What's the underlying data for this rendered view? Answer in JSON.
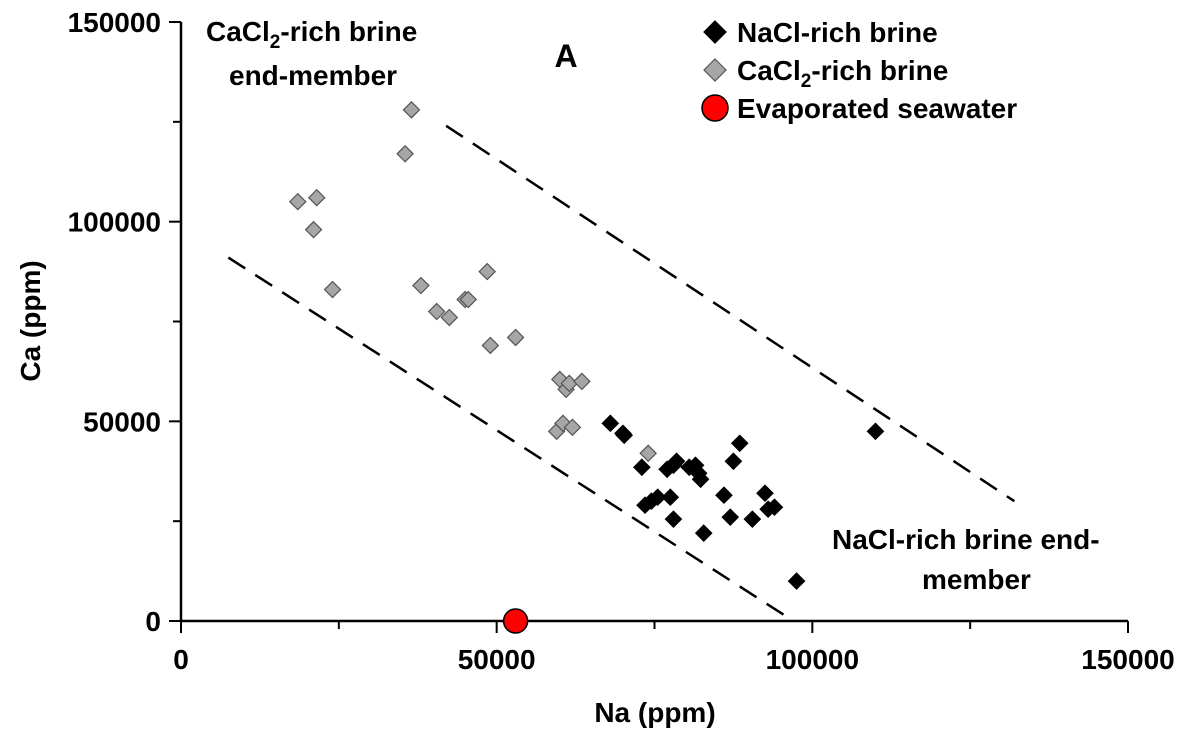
{
  "chart_data": {
    "type": "scatter",
    "panel_label": "A",
    "xlabel": "Na (ppm)",
    "ylabel": "Ca (ppm)",
    "xlim": [
      0,
      150000
    ],
    "ylim": [
      0,
      150000
    ],
    "x_ticks": [
      0,
      50000,
      100000,
      150000
    ],
    "y_ticks": [
      0,
      50000,
      100000,
      150000
    ],
    "x_tick_labels": [
      "0",
      "50000",
      "100000",
      "150000"
    ],
    "y_tick_labels": [
      "0",
      "50000",
      "100000",
      "150000"
    ],
    "grid": false,
    "legend_position": "top-right",
    "annotations": {
      "cacl2_end_member_line1_pre": "CaCl",
      "cacl2_end_member_line1_sub": "2",
      "cacl2_end_member_line1_post": "-rich brine",
      "cacl2_end_member_line2": "end-member",
      "nacl_end_member_line1": "NaCl-rich brine end-",
      "nacl_end_member_line2": "member"
    },
    "series": [
      {
        "name": "NaCl-rich brine",
        "legend_label_pre": "NaCl-rich brine",
        "legend_label_sub": "",
        "legend_label_post": "",
        "marker": "diamond",
        "color": "#000000",
        "stroke": "#000000",
        "points": [
          [
            68000,
            49500
          ],
          [
            70000,
            47000
          ],
          [
            70200,
            46500
          ],
          [
            73000,
            38500
          ],
          [
            73500,
            29000
          ],
          [
            74500,
            30000
          ],
          [
            75500,
            31000
          ],
          [
            77000,
            38000
          ],
          [
            77500,
            31000
          ],
          [
            78000,
            39000
          ],
          [
            78500,
            40000
          ],
          [
            78000,
            25500
          ],
          [
            80500,
            38500
          ],
          [
            81500,
            39000
          ],
          [
            82000,
            37000
          ],
          [
            82300,
            35500
          ],
          [
            82800,
            22000
          ],
          [
            86000,
            31500
          ],
          [
            87000,
            26000
          ],
          [
            87500,
            40000
          ],
          [
            88500,
            44500
          ],
          [
            90500,
            25500
          ],
          [
            92500,
            32000
          ],
          [
            93000,
            28000
          ],
          [
            94000,
            28500
          ],
          [
            97500,
            10000
          ],
          [
            110000,
            47500
          ]
        ]
      },
      {
        "name": "CaCl2-rich brine",
        "legend_label_pre": "CaCl",
        "legend_label_sub": "2",
        "legend_label_post": "-rich brine",
        "marker": "diamond",
        "color": "#a6a6a6",
        "stroke": "#555555",
        "points": [
          [
            18500,
            105000
          ],
          [
            21000,
            98000
          ],
          [
            21500,
            106000
          ],
          [
            24000,
            83000
          ],
          [
            35500,
            117000
          ],
          [
            36500,
            128000
          ],
          [
            38000,
            84000
          ],
          [
            40500,
            77500
          ],
          [
            42500,
            76000
          ],
          [
            45000,
            80500
          ],
          [
            45500,
            80500
          ],
          [
            48500,
            87500
          ],
          [
            49000,
            69000
          ],
          [
            53000,
            71000
          ],
          [
            59500,
            47500
          ],
          [
            60000,
            60500
          ],
          [
            60500,
            49500
          ],
          [
            61000,
            58000
          ],
          [
            61500,
            59500
          ],
          [
            62000,
            48500
          ],
          [
            63500,
            60000
          ],
          [
            74000,
            42000
          ]
        ]
      },
      {
        "name": "Evaporated seawater",
        "legend_label_pre": "Evaporated seawater",
        "legend_label_sub": "",
        "legend_label_post": "",
        "marker": "circle",
        "color": "#ff0000",
        "stroke": "#000000",
        "points": [
          [
            53000,
            0
          ]
        ]
      }
    ],
    "dashed_lines": [
      {
        "x1": 7500,
        "y1": 91000,
        "x2": 97000,
        "y2": 0
      },
      {
        "x1": 42000,
        "y1": 124000,
        "x2": 132000,
        "y2": 30000
      }
    ]
  }
}
